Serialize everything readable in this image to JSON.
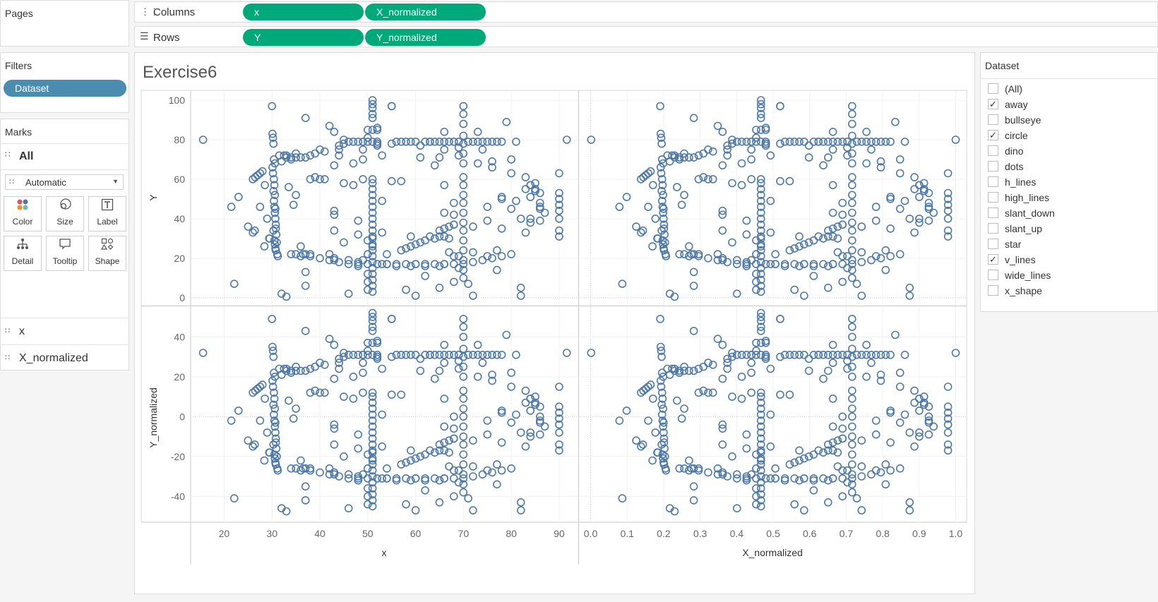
{
  "pages": {
    "title": "Pages"
  },
  "shelves": {
    "columns_label": "Columns",
    "rows_label": "Rows",
    "columns_pills": [
      "x",
      "X_normalized"
    ],
    "rows_pills": [
      "Y",
      "Y_normalized"
    ]
  },
  "filters": {
    "title": "Filters",
    "pill": "Dataset"
  },
  "marks": {
    "title": "Marks",
    "all_label": "All",
    "mark_type": "Automatic",
    "buttons": [
      {
        "label": "Color",
        "icon": "color-icon"
      },
      {
        "label": "Size",
        "icon": "size-icon"
      },
      {
        "label": "Label",
        "icon": "label-icon"
      },
      {
        "label": "Detail",
        "icon": "detail-icon"
      },
      {
        "label": "Tooltip",
        "icon": "tooltip-icon"
      },
      {
        "label": "Shape",
        "icon": "shape-icon"
      }
    ],
    "fields": [
      "x",
      "X_normalized"
    ]
  },
  "dataset_filter": {
    "title": "Dataset",
    "options": [
      {
        "label": "(All)",
        "checked": false
      },
      {
        "label": "away",
        "checked": true
      },
      {
        "label": "bullseye",
        "checked": false
      },
      {
        "label": "circle",
        "checked": true
      },
      {
        "label": "dino",
        "checked": false
      },
      {
        "label": "dots",
        "checked": false
      },
      {
        "label": "h_lines",
        "checked": false
      },
      {
        "label": "high_lines",
        "checked": false
      },
      {
        "label": "slant_down",
        "checked": false
      },
      {
        "label": "slant_up",
        "checked": false
      },
      {
        "label": "star",
        "checked": false
      },
      {
        "label": "v_lines",
        "checked": true
      },
      {
        "label": "wide_lines",
        "checked": false
      },
      {
        "label": "x_shape",
        "checked": false
      }
    ]
  },
  "colors": {
    "mark": "#4e79a7",
    "columns_pill": "#00a97a",
    "filter_pill": "#4a8db0"
  },
  "chart_data": {
    "type": "scatter",
    "title": "Exercise6",
    "mark_shape": "open circle",
    "columns": [
      "x",
      "X_normalized"
    ],
    "rows": [
      "Y",
      "Y_normalized"
    ],
    "axes": {
      "x": {
        "label": "x",
        "ticks": [
          20,
          30,
          40,
          50,
          60,
          70,
          80,
          90
        ],
        "range": [
          13,
          94
        ]
      },
      "X_normalized": {
        "label": "X_normalized",
        "ticks": [
          "0.0",
          "0.1",
          "0.2",
          "0.3",
          "0.4",
          "0.5",
          "0.6",
          "0.7",
          "0.8",
          "0.9",
          "1.0"
        ],
        "range": [
          -0.03,
          1.03
        ]
      },
      "Y": {
        "label": "Y",
        "ticks": [
          0,
          20,
          40,
          60,
          80,
          100
        ],
        "range": [
          -4,
          105
        ]
      },
      "Y_normalized": {
        "label": "Y_normalized",
        "ticks": [
          -40,
          -20,
          0,
          20,
          40
        ],
        "range": [
          -53,
          55
        ]
      }
    },
    "normalization": {
      "x_min": 15.5,
      "x_max": 91.6,
      "y_offset": 48
    },
    "points": [
      [
        15.6,
        80
      ],
      [
        21.5,
        46
      ],
      [
        22.1,
        7
      ],
      [
        23,
        51
      ],
      [
        25,
        36
      ],
      [
        26,
        33
      ],
      [
        26.4,
        34
      ],
      [
        28.4,
        26
      ],
      [
        27.5,
        46
      ],
      [
        28.5,
        57
      ],
      [
        29,
        40
      ],
      [
        29.5,
        30
      ],
      [
        29.4,
        30
      ],
      [
        30,
        97
      ],
      [
        30.1,
        83
      ],
      [
        30.2,
        81
      ],
      [
        30.3,
        78
      ],
      [
        30.4,
        70
      ],
      [
        30.6,
        68
      ],
      [
        30.1,
        66
      ],
      [
        30.2,
        63
      ],
      [
        30.3,
        54
      ],
      [
        30.4,
        49
      ],
      [
        30.5,
        46
      ],
      [
        30.6,
        43
      ],
      [
        30.7,
        40
      ],
      [
        30.8,
        37
      ],
      [
        30.3,
        34
      ],
      [
        30.5,
        29
      ],
      [
        30.6,
        27
      ],
      [
        30.7,
        25
      ],
      [
        30.8,
        24
      ],
      [
        31.5,
        72
      ],
      [
        32,
        69
      ],
      [
        32.5,
        72
      ],
      [
        33,
        72
      ],
      [
        34,
        70
      ],
      [
        32,
        2
      ],
      [
        33,
        0.5
      ],
      [
        33.5,
        56
      ],
      [
        35,
        73
      ],
      [
        34.5,
        47
      ],
      [
        35,
        52
      ],
      [
        36,
        26
      ],
      [
        36.5,
        22
      ],
      [
        37,
        22
      ],
      [
        38,
        22
      ],
      [
        37,
        91
      ],
      [
        37,
        13
      ],
      [
        37,
        6
      ],
      [
        38,
        60
      ],
      [
        39,
        61
      ],
      [
        40,
        75
      ],
      [
        40,
        60
      ],
      [
        41,
        60
      ],
      [
        42,
        22
      ],
      [
        42,
        87
      ],
      [
        43,
        84
      ],
      [
        43,
        67
      ],
      [
        43,
        44
      ],
      [
        43,
        42
      ],
      [
        43,
        34
      ],
      [
        43,
        20
      ],
      [
        43,
        19
      ],
      [
        44,
        77
      ],
      [
        44,
        72
      ],
      [
        45,
        80
      ],
      [
        45,
        58
      ],
      [
        45,
        28
      ],
      [
        46,
        19
      ],
      [
        46,
        2
      ],
      [
        47,
        68
      ],
      [
        47,
        57
      ],
      [
        48,
        39
      ],
      [
        48,
        32
      ],
      [
        48,
        18
      ],
      [
        48,
        16
      ],
      [
        49,
        70
      ],
      [
        49,
        60
      ],
      [
        49,
        75
      ],
      [
        49,
        79
      ],
      [
        49,
        19
      ],
      [
        50,
        81
      ],
      [
        50,
        29
      ],
      [
        50,
        22
      ],
      [
        51,
        31
      ],
      [
        51,
        26
      ],
      [
        50,
        12
      ],
      [
        50,
        4
      ],
      [
        50,
        8
      ],
      [
        51,
        79
      ],
      [
        50,
        85
      ],
      [
        51,
        85
      ],
      [
        52,
        86
      ],
      [
        52,
        78
      ],
      [
        52,
        77
      ],
      [
        53,
        72
      ],
      [
        53,
        49
      ],
      [
        53,
        17
      ],
      [
        53,
        33
      ],
      [
        54,
        22
      ],
      [
        54,
        17
      ],
      [
        55,
        97
      ],
      [
        55,
        78
      ],
      [
        56,
        16
      ],
      [
        57,
        59
      ],
      [
        58,
        4
      ],
      [
        59,
        31
      ],
      [
        59,
        16
      ],
      [
        60,
        1
      ],
      [
        60,
        17
      ],
      [
        61,
        71
      ],
      [
        62,
        16
      ],
      [
        62,
        11
      ],
      [
        63,
        79
      ],
      [
        64,
        67
      ],
      [
        65,
        71
      ],
      [
        65,
        16
      ],
      [
        65,
        5
      ],
      [
        66,
        84
      ],
      [
        66,
        75
      ],
      [
        66,
        57
      ],
      [
        66,
        43
      ],
      [
        66,
        31
      ],
      [
        66,
        17
      ],
      [
        67,
        30
      ],
      [
        67,
        23
      ],
      [
        68,
        48
      ],
      [
        68,
        42
      ],
      [
        68,
        37
      ],
      [
        68,
        21
      ],
      [
        68,
        8
      ],
      [
        69,
        76
      ],
      [
        69,
        72
      ],
      [
        69,
        21
      ],
      [
        69,
        15
      ],
      [
        70,
        82
      ],
      [
        70,
        78
      ],
      [
        70,
        73
      ],
      [
        70,
        68
      ],
      [
        70,
        61
      ],
      [
        70,
        57
      ],
      [
        70,
        52
      ],
      [
        70,
        48
      ],
      [
        70,
        43
      ],
      [
        70,
        38
      ],
      [
        70,
        34
      ],
      [
        70,
        29
      ],
      [
        70,
        24
      ],
      [
        70,
        19
      ],
      [
        70,
        14
      ],
      [
        70,
        10
      ],
      [
        70,
        97
      ],
      [
        70,
        93
      ],
      [
        70,
        88
      ],
      [
        71,
        7
      ],
      [
        72,
        36
      ],
      [
        72,
        23
      ],
      [
        72,
        1
      ],
      [
        73,
        84
      ],
      [
        73,
        68
      ],
      [
        74,
        75
      ],
      [
        75,
        21
      ],
      [
        75,
        46
      ],
      [
        75,
        39
      ],
      [
        76,
        69
      ],
      [
        76,
        66
      ],
      [
        77,
        24
      ],
      [
        77,
        14
      ],
      [
        78,
        50
      ],
      [
        78,
        51
      ],
      [
        78,
        35
      ],
      [
        79,
        89
      ],
      [
        80,
        70
      ],
      [
        80,
        63
      ],
      [
        80,
        45
      ],
      [
        81,
        49
      ],
      [
        81,
        79
      ],
      [
        82,
        40
      ],
      [
        83,
        61
      ],
      [
        84,
        57
      ],
      [
        85,
        58
      ],
      [
        84,
        51
      ],
      [
        83,
        33
      ],
      [
        82,
        5
      ],
      [
        82,
        1
      ],
      [
        85,
        55
      ],
      [
        86,
        53
      ],
      [
        86,
        39
      ],
      [
        86,
        45
      ],
      [
        87,
        43
      ],
      [
        90,
        63
      ],
      [
        90,
        53
      ],
      [
        90,
        50
      ],
      [
        90,
        47
      ],
      [
        90,
        44
      ],
      [
        90,
        40
      ],
      [
        90,
        34
      ],
      [
        90,
        31
      ],
      [
        91.6,
        80
      ],
      [
        51,
        100
      ],
      [
        51,
        98
      ],
      [
        51,
        96
      ],
      [
        51,
        93
      ],
      [
        51,
        91
      ],
      [
        52,
        79
      ],
      [
        52,
        85
      ],
      [
        52,
        78
      ],
      [
        55,
        97
      ],
      [
        56,
        79
      ],
      [
        55,
        59
      ],
      [
        57,
        79
      ],
      [
        58,
        79
      ],
      [
        59,
        79
      ],
      [
        60,
        79
      ],
      [
        61,
        77
      ],
      [
        62,
        79
      ],
      [
        63,
        79
      ],
      [
        64,
        79
      ],
      [
        65,
        79
      ],
      [
        66,
        79
      ],
      [
        67,
        79
      ],
      [
        68,
        79
      ],
      [
        69,
        79
      ],
      [
        71,
        79
      ],
      [
        72,
        79
      ],
      [
        73,
        79
      ],
      [
        74,
        79
      ],
      [
        75,
        79
      ],
      [
        76,
        79
      ],
      [
        77,
        79
      ],
      [
        78,
        79
      ],
      [
        46,
        79
      ],
      [
        47,
        79
      ],
      [
        48,
        79
      ],
      [
        49,
        79
      ],
      [
        50,
        79
      ],
      [
        45,
        78
      ],
      [
        44,
        75
      ],
      [
        41,
        74
      ],
      [
        39,
        73
      ],
      [
        38,
        72
      ],
      [
        37,
        71
      ],
      [
        36,
        71
      ],
      [
        35,
        71
      ],
      [
        34,
        71
      ],
      [
        33,
        71
      ],
      [
        26,
        60
      ],
      [
        26.5,
        61
      ],
      [
        27,
        62
      ],
      [
        27.5,
        63
      ],
      [
        28,
        64
      ],
      [
        83,
        55
      ],
      [
        84,
        57
      ],
      [
        85,
        54
      ],
      [
        86,
        48
      ],
      [
        86,
        46
      ],
      [
        84,
        40
      ],
      [
        84,
        38
      ],
      [
        34,
        22
      ],
      [
        35,
        22
      ],
      [
        36,
        21
      ],
      [
        38,
        21
      ],
      [
        40,
        20
      ],
      [
        42,
        19
      ],
      [
        44,
        18
      ],
      [
        46,
        17
      ],
      [
        48,
        17
      ],
      [
        50,
        17
      ],
      [
        52,
        17
      ],
      [
        54,
        17
      ],
      [
        56,
        17
      ],
      [
        58,
        17
      ],
      [
        60,
        17
      ],
      [
        62,
        17
      ],
      [
        64,
        17
      ],
      [
        66,
        17
      ],
      [
        68,
        17
      ],
      [
        70,
        17
      ],
      [
        72,
        18
      ],
      [
        74,
        19
      ],
      [
        76,
        20
      ],
      [
        78,
        21
      ],
      [
        80,
        22
      ],
      [
        51,
        60
      ],
      [
        51,
        58
      ],
      [
        51,
        55
      ],
      [
        51,
        52
      ],
      [
        51,
        49
      ],
      [
        51,
        46
      ],
      [
        51,
        43
      ],
      [
        51,
        40
      ],
      [
        51,
        37
      ],
      [
        51,
        34
      ],
      [
        51,
        30
      ],
      [
        51,
        27
      ],
      [
        51,
        24
      ],
      [
        51,
        21
      ],
      [
        51,
        18
      ],
      [
        51,
        15
      ],
      [
        51,
        12
      ],
      [
        51,
        9
      ],
      [
        51,
        6
      ],
      [
        51,
        3
      ],
      [
        30.4,
        60
      ],
      [
        30.5,
        57
      ],
      [
        30.6,
        52
      ],
      [
        30.7,
        45
      ],
      [
        30.8,
        35
      ],
      [
        30.9,
        32
      ],
      [
        31,
        28
      ],
      [
        31.1,
        22
      ],
      [
        31.2,
        21
      ],
      [
        65,
        31
      ],
      [
        64,
        30
      ],
      [
        63,
        31
      ],
      [
        62,
        29
      ],
      [
        61,
        28
      ],
      [
        60,
        27
      ],
      [
        59,
        26
      ],
      [
        58,
        25
      ],
      [
        57,
        24
      ],
      [
        65,
        34
      ],
      [
        66,
        35
      ],
      [
        67,
        36
      ],
      [
        68,
        37
      ]
    ]
  }
}
